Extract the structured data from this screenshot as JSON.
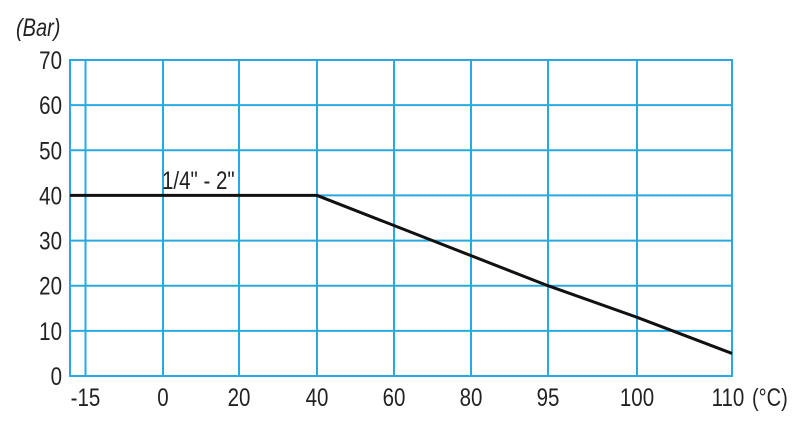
{
  "chart_data": {
    "type": "line",
    "title": "",
    "xlabel": "(°C)",
    "ylabel": "(Bar)",
    "x_ticks": [
      "-15",
      "0",
      "20",
      "40",
      "60",
      "80",
      "95",
      "100",
      "110"
    ],
    "y_ticks": [
      "0",
      "10",
      "20",
      "30",
      "40",
      "50",
      "60",
      "70"
    ],
    "ylim": [
      0,
      70
    ],
    "grid": true,
    "grid_color": "#29a9e1",
    "line_color": "#111111",
    "series": [
      {
        "name": "1/4\" - 2\"",
        "points": [
          {
            "x": -15,
            "y": 40
          },
          {
            "x": 40,
            "y": 40
          },
          {
            "x": 95,
            "y": 20
          },
          {
            "x": 100,
            "y": 13
          },
          {
            "x": 110,
            "y": 5
          }
        ]
      }
    ]
  }
}
